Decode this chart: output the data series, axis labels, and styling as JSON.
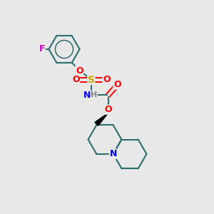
{
  "bg_color": "#e8e8e8",
  "atom_colors": {
    "C": "#000000",
    "H": "#808080",
    "N": "#0000ff",
    "O": "#ff0000",
    "S": "#ccaa00",
    "F": "#cc00cc"
  },
  "bond_color": "#2d6e6e",
  "figsize": [
    3.0,
    3.0
  ],
  "dpi": 100
}
